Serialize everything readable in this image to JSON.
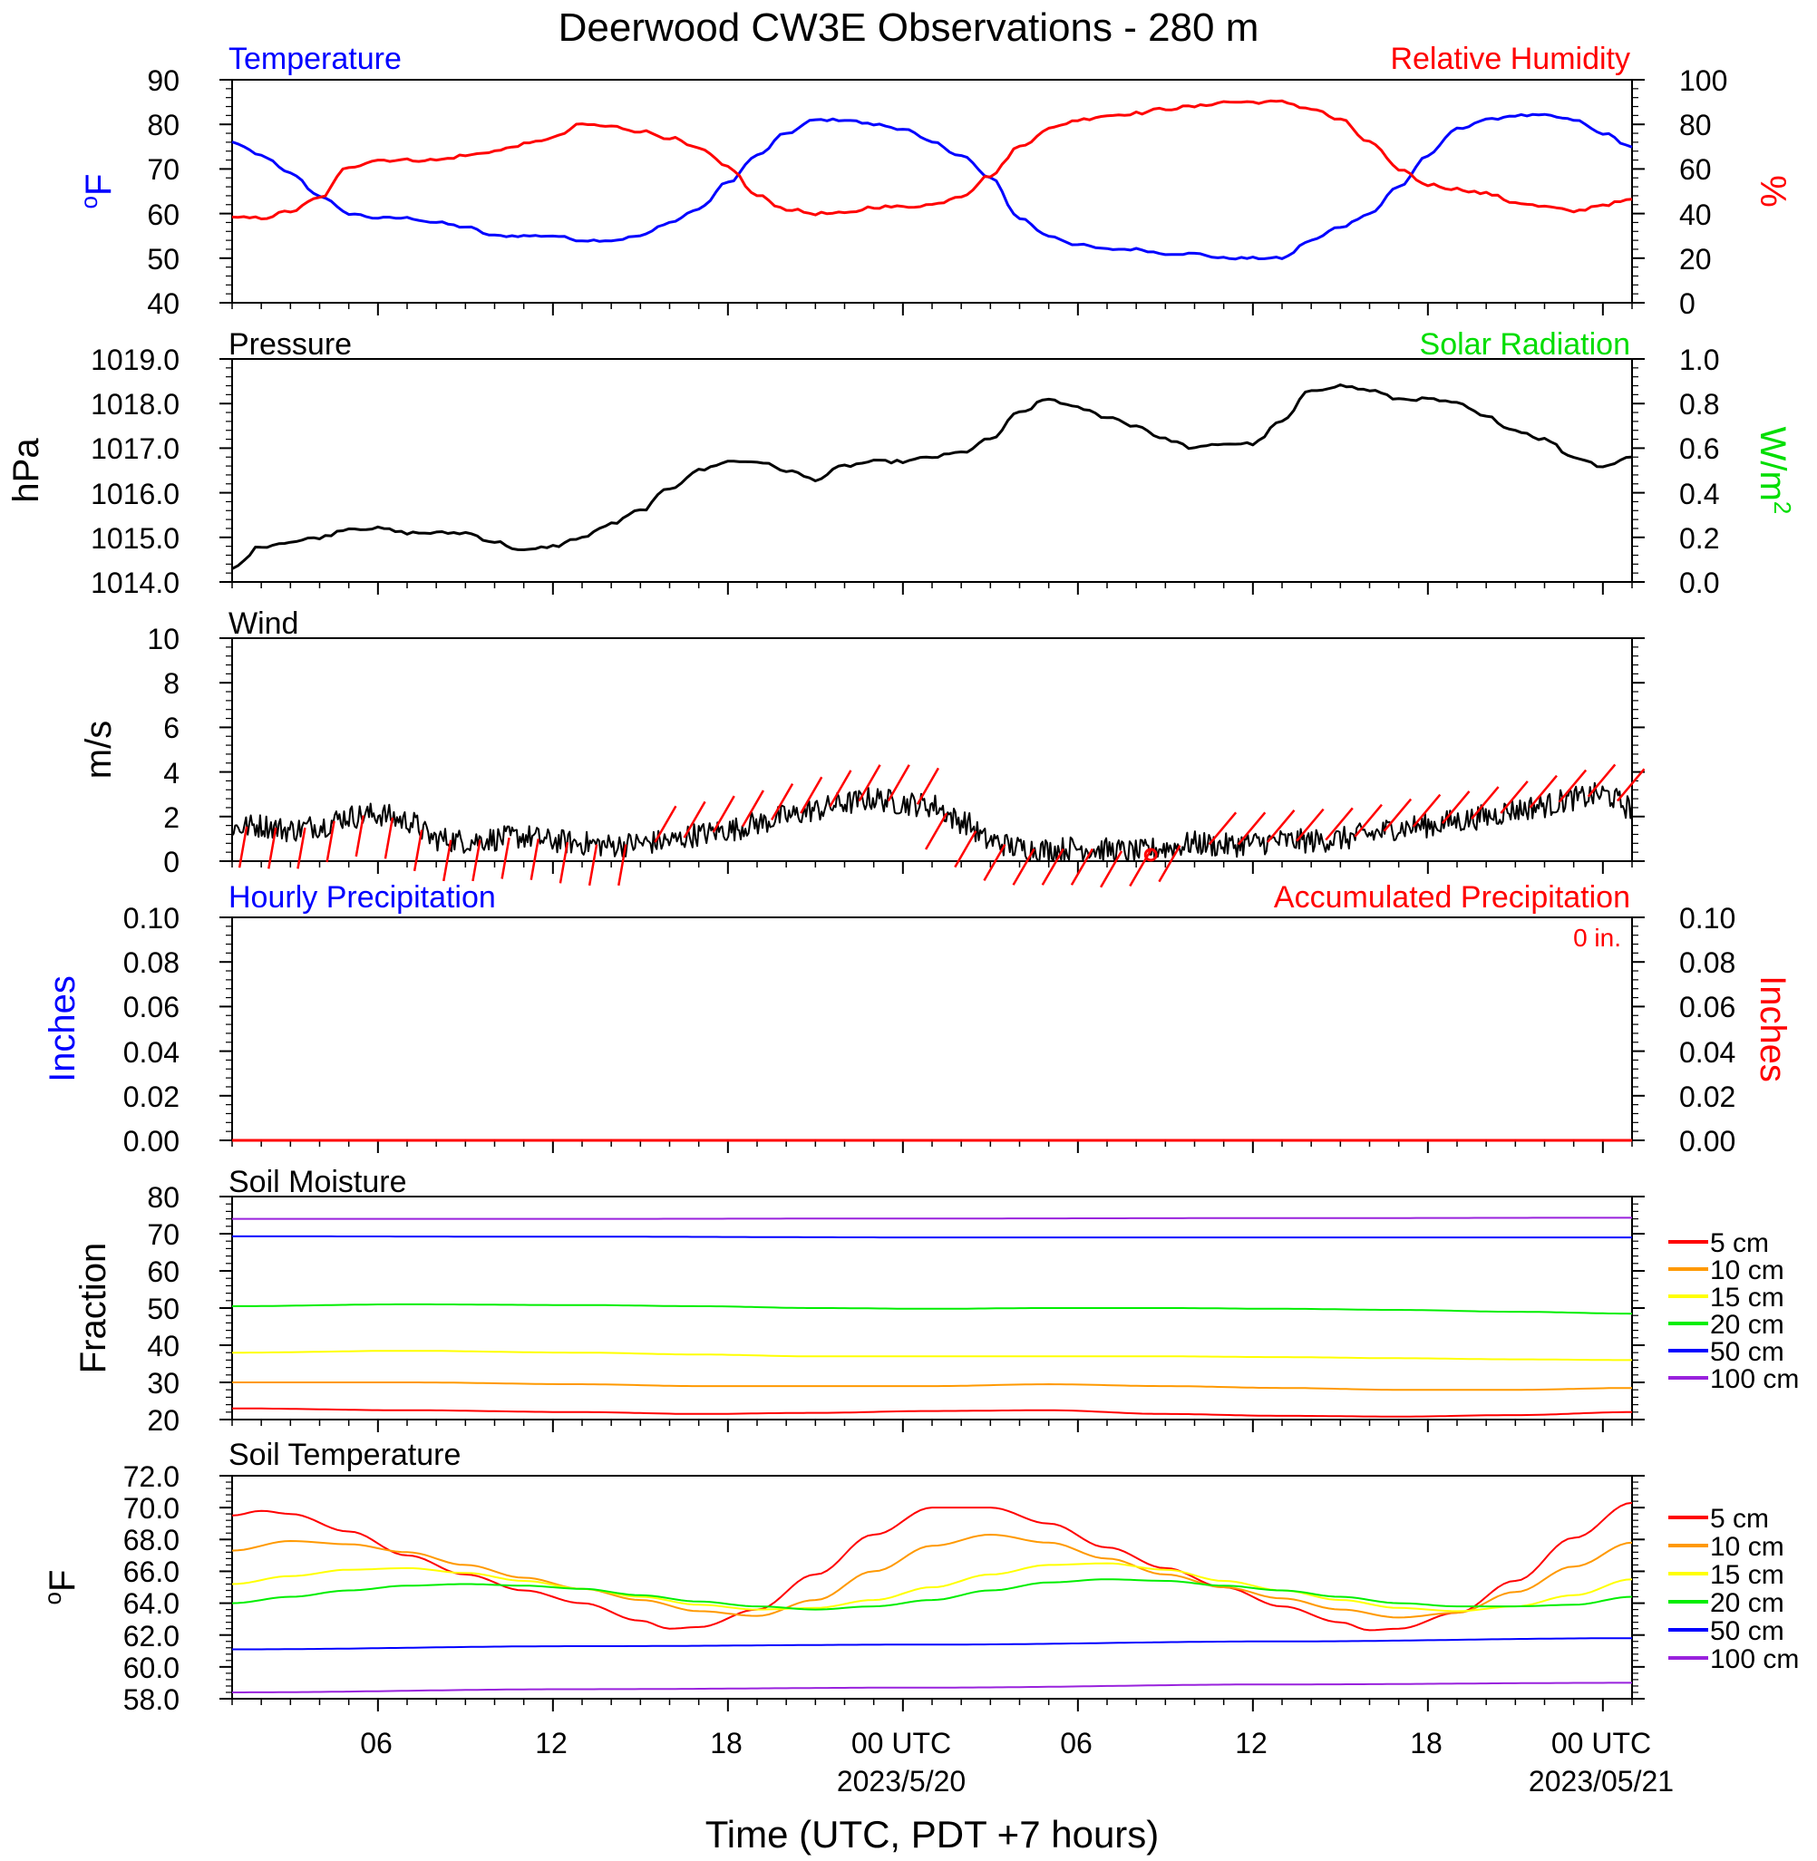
{
  "title": "Deerwood CW3E Observations - 280 m",
  "xaxis": {
    "title": "Time (UTC, PDT +7 hours)",
    "ticks": [
      {
        "h": 5,
        "label": "06",
        "sub": ""
      },
      {
        "h": 11,
        "label": "12",
        "sub": ""
      },
      {
        "h": 17,
        "label": "18",
        "sub": ""
      },
      {
        "h": 23,
        "label": "00 UTC",
        "sub": "2023/5/20"
      },
      {
        "h": 29,
        "label": "06",
        "sub": ""
      },
      {
        "h": 35,
        "label": "12",
        "sub": ""
      },
      {
        "h": 41,
        "label": "18",
        "sub": ""
      },
      {
        "h": 47,
        "label": "00 UTC",
        "sub": "2023/05/21"
      }
    ]
  },
  "colors": {
    "temperature": "#0000ff",
    "humidity": "#ff0000",
    "pressure": "#000000",
    "solar": "#00dd00",
    "wind_line": "#000000",
    "wind_barb": "#ff0000",
    "hourly_precip": "#0000ff",
    "accum_precip": "#ff0000",
    "depth_5": "#ff0000",
    "depth_10": "#ff9900",
    "depth_15": "#ffff00",
    "depth_20": "#00ee00",
    "depth_50": "#0000ff",
    "depth_100": "#9922dd"
  },
  "panels": {
    "temp_rh": {
      "left_title": "Temperature",
      "right_title": "Relative Humidity",
      "left_unit": "oF",
      "right_unit": "%",
      "left_ticks": [
        "40",
        "50",
        "60",
        "70",
        "80",
        "90"
      ],
      "right_ticks": [
        "0",
        "20",
        "40",
        "60",
        "80",
        "100"
      ]
    },
    "pressure": {
      "left_title": "Pressure",
      "right_title": "Solar Radiation",
      "left_unit": "hPa",
      "right_unit": "W/m2",
      "left_ticks": [
        "1014.0",
        "1015.0",
        "1016.0",
        "1017.0",
        "1018.0",
        "1019.0"
      ],
      "right_ticks": [
        "0.0",
        "0.2",
        "0.4",
        "0.6",
        "0.8",
        "1.0"
      ]
    },
    "wind": {
      "left_title": "Wind",
      "left_unit": "m/s",
      "left_ticks": [
        "0",
        "2",
        "4",
        "6",
        "8",
        "10"
      ]
    },
    "precip": {
      "left_title": "Hourly Precipitation",
      "right_title": "Accumulated Precipitation",
      "accum_label": "0 in.",
      "left_unit": "Inches",
      "right_unit": "Inches",
      "left_ticks": [
        "0.00",
        "0.02",
        "0.04",
        "0.06",
        "0.08",
        "0.10"
      ],
      "right_ticks": [
        "0.00",
        "0.02",
        "0.04",
        "0.06",
        "0.08",
        "0.10"
      ]
    },
    "soil_moisture": {
      "left_title": "Soil Moisture",
      "left_unit": "Fraction",
      "left_ticks": [
        "20",
        "30",
        "40",
        "50",
        "60",
        "70",
        "80"
      ],
      "legend": [
        "5 cm",
        "10 cm",
        "15 cm",
        "20 cm",
        "50 cm",
        "100 cm"
      ]
    },
    "soil_temperature": {
      "left_title": "Soil Temperature",
      "left_unit": "oF",
      "left_ticks": [
        "58.0",
        "60.0",
        "62.0",
        "64.0",
        "66.0",
        "68.0",
        "70.0",
        "72.0"
      ],
      "legend": [
        "5 cm",
        "10 cm",
        "15 cm",
        "20 cm",
        "50 cm",
        "100 cm"
      ]
    }
  },
  "chart_data": [
    {
      "type": "line",
      "panel": "temp_rh",
      "xlim_hours": [
        0,
        48
      ],
      "series": [
        {
          "name": "Temperature",
          "axis": "left",
          "ylim": [
            40,
            90
          ],
          "x": [
            0,
            1,
            2,
            3,
            4,
            5,
            6,
            7,
            8,
            9,
            10,
            11,
            12,
            13,
            14,
            15,
            16,
            17,
            18,
            19,
            20,
            21,
            22,
            23,
            24,
            25,
            26,
            27,
            28,
            29,
            30,
            31,
            32,
            33,
            34,
            35,
            36,
            37,
            38,
            39,
            40,
            41,
            42,
            43,
            44,
            45,
            46,
            47,
            48
          ],
          "y": [
            76,
            73,
            69,
            64,
            60,
            59,
            59,
            58,
            57,
            55,
            55,
            55,
            54,
            54,
            55,
            58,
            61,
            67,
            73,
            78,
            81,
            81,
            80,
            79,
            76,
            73,
            68,
            59,
            55,
            53,
            52,
            52,
            51,
            51,
            50,
            50,
            50,
            54,
            57,
            60,
            66,
            73,
            79,
            81,
            82,
            82,
            81,
            78,
            75
          ]
        },
        {
          "name": "Relative Humidity",
          "axis": "right",
          "ylim": [
            0,
            100
          ],
          "x": [
            0,
            1,
            2,
            3,
            4,
            5,
            6,
            7,
            8,
            9,
            10,
            11,
            12,
            13,
            14,
            15,
            16,
            17,
            18,
            19,
            20,
            21,
            22,
            23,
            24,
            25,
            26,
            27,
            28,
            29,
            30,
            31,
            32,
            33,
            34,
            35,
            36,
            37,
            38,
            39,
            40,
            41,
            42,
            43,
            44,
            45,
            46,
            47,
            48
          ],
          "y": [
            38,
            38,
            41,
            47,
            61,
            64,
            64,
            64,
            66,
            68,
            71,
            74,
            80,
            79,
            77,
            74,
            69,
            61,
            48,
            42,
            40,
            40,
            43,
            43,
            44,
            48,
            57,
            70,
            78,
            82,
            84,
            85,
            87,
            88,
            90,
            90,
            90,
            87,
            82,
            72,
            60,
            53,
            51,
            49,
            45,
            43,
            41,
            44,
            46
          ]
        }
      ]
    },
    {
      "type": "line",
      "panel": "pressure",
      "xlim_hours": [
        0,
        48
      ],
      "series": [
        {
          "name": "Pressure",
          "axis": "left",
          "ylim": [
            1014,
            1019
          ],
          "x": [
            0,
            1,
            2,
            3,
            4,
            5,
            6,
            7,
            8,
            9,
            10,
            11,
            12,
            13,
            14,
            15,
            16,
            17,
            18,
            19,
            20,
            21,
            22,
            23,
            24,
            25,
            26,
            27,
            28,
            29,
            30,
            31,
            32,
            33,
            34,
            35,
            36,
            37,
            38,
            39,
            40,
            41,
            42,
            43,
            44,
            45,
            46,
            47,
            48
          ],
          "y": [
            1014.3,
            1014.8,
            1014.9,
            1015.0,
            1015.2,
            1015.2,
            1015.1,
            1015.1,
            1015.1,
            1014.9,
            1014.7,
            1014.8,
            1015.0,
            1015.3,
            1015.6,
            1016.1,
            1016.5,
            1016.7,
            1016.7,
            1016.5,
            1016.3,
            1016.6,
            1016.7,
            1016.7,
            1016.8,
            1016.9,
            1017.2,
            1017.8,
            1018.1,
            1017.9,
            1017.7,
            1017.5,
            1017.2,
            1017.0,
            1017.1,
            1017.1,
            1017.6,
            1018.3,
            1018.4,
            1018.3,
            1018.1,
            1018.1,
            1018.0,
            1017.7,
            1017.4,
            1017.2,
            1016.8,
            1016.6,
            1016.8
          ]
        }
      ]
    },
    {
      "type": "line",
      "panel": "wind",
      "xlim_hours": [
        0,
        48
      ],
      "series": [
        {
          "name": "Wind",
          "axis": "left",
          "ylim": [
            0,
            10
          ],
          "x": [
            0,
            1,
            2,
            3,
            4,
            5,
            6,
            7,
            8,
            9,
            10,
            11,
            12,
            13,
            14,
            15,
            16,
            17,
            18,
            19,
            20,
            21,
            22,
            23,
            24,
            25,
            26,
            27,
            28,
            29,
            30,
            31,
            32,
            33,
            34,
            35,
            36,
            37,
            38,
            39,
            40,
            41,
            42,
            43,
            44,
            45,
            46,
            47,
            48
          ],
          "y": [
            1.5,
            1.6,
            1.4,
            1.6,
            2.0,
            2.1,
            1.8,
            1.0,
            0.9,
            1.0,
            1.1,
            0.9,
            0.8,
            0.7,
            0.8,
            0.9,
            1.2,
            1.4,
            1.7,
            2.0,
            2.3,
            2.6,
            2.8,
            2.6,
            2.5,
            1.8,
            0.9,
            0.6,
            0.5,
            0.6,
            0.5,
            0.4,
            0.6,
            0.8,
            0.7,
            0.8,
            0.9,
            0.9,
            1.0,
            1.2,
            1.5,
            1.6,
            1.8,
            2.0,
            2.3,
            2.5,
            2.8,
            3.0,
            2.4
          ]
        }
      ]
    },
    {
      "type": "line",
      "panel": "precip",
      "xlim_hours": [
        0,
        48
      ],
      "series": [
        {
          "name": "Hourly Precipitation",
          "axis": "left",
          "ylim": [
            0,
            0.1
          ],
          "x": [
            0,
            48
          ],
          "y": [
            0,
            0
          ]
        },
        {
          "name": "Accumulated Precipitation",
          "axis": "right",
          "ylim": [
            0,
            0.1
          ],
          "x": [
            0,
            48
          ],
          "y": [
            0,
            0
          ]
        }
      ]
    },
    {
      "type": "line",
      "panel": "soil_moisture",
      "xlim_hours": [
        0,
        48
      ],
      "ylim": [
        20,
        80
      ],
      "series": [
        {
          "name": "5 cm",
          "x": [
            0,
            6,
            12,
            16,
            20,
            24,
            28,
            32,
            36,
            40,
            44,
            48
          ],
          "y": [
            23,
            22.5,
            22,
            21.5,
            21.8,
            22.3,
            22.5,
            21.5,
            21,
            20.8,
            21.2,
            22
          ]
        },
        {
          "name": "10 cm",
          "x": [
            0,
            6,
            12,
            16,
            20,
            24,
            28,
            32,
            36,
            40,
            44,
            48
          ],
          "y": [
            30,
            30,
            29.5,
            29,
            29,
            29,
            29.5,
            29,
            28.5,
            28,
            28,
            28.5
          ]
        },
        {
          "name": "15 cm",
          "x": [
            0,
            6,
            12,
            16,
            20,
            24,
            28,
            32,
            36,
            40,
            44,
            48
          ],
          "y": [
            38,
            38.5,
            38,
            37.5,
            37,
            37,
            37,
            37,
            36.8,
            36.5,
            36.2,
            36
          ]
        },
        {
          "name": "20 cm",
          "x": [
            0,
            6,
            12,
            16,
            20,
            24,
            28,
            32,
            36,
            40,
            44,
            48
          ],
          "y": [
            50.5,
            51,
            50.8,
            50.5,
            50,
            49.8,
            50,
            50,
            49.8,
            49.5,
            49,
            48.5
          ]
        },
        {
          "name": "50 cm",
          "x": [
            0,
            12,
            24,
            36,
            48
          ],
          "y": [
            69.3,
            69.2,
            69,
            69,
            69
          ]
        },
        {
          "name": "100 cm",
          "x": [
            0,
            12,
            24,
            36,
            48
          ],
          "y": [
            74,
            74,
            74.1,
            74.2,
            74.3
          ]
        }
      ]
    },
    {
      "type": "line",
      "panel": "soil_temperature",
      "xlim_hours": [
        0,
        48
      ],
      "ylim": [
        58,
        72
      ],
      "series": [
        {
          "name": "5 cm",
          "x": [
            0,
            1,
            2,
            4,
            6,
            8,
            10,
            12,
            14,
            15,
            16,
            18,
            20,
            22,
            24,
            26,
            28,
            30,
            32,
            34,
            36,
            38,
            39,
            40,
            42,
            44,
            46,
            48
          ],
          "y": [
            69.5,
            69.8,
            69.6,
            68.5,
            67,
            65.8,
            64.8,
            64,
            62.9,
            62.4,
            62.5,
            63.6,
            65.8,
            68.3,
            70,
            70,
            69,
            67.5,
            66.2,
            65,
            63.8,
            62.8,
            62.3,
            62.4,
            63.4,
            65.4,
            68.1,
            70.3
          ]
        },
        {
          "name": "10 cm",
          "x": [
            0,
            2,
            4,
            6,
            8,
            10,
            12,
            14,
            16,
            18,
            20,
            22,
            24,
            26,
            28,
            30,
            32,
            34,
            36,
            38,
            40,
            42,
            44,
            46,
            48
          ],
          "y": [
            67.3,
            67.9,
            67.7,
            67.2,
            66.4,
            65.6,
            64.9,
            64.2,
            63.5,
            63.2,
            64.2,
            66,
            67.6,
            68.3,
            67.8,
            66.8,
            65.8,
            65,
            64.3,
            63.6,
            63.1,
            63.4,
            64.7,
            66.3,
            67.8
          ]
        },
        {
          "name": "15 cm",
          "x": [
            0,
            2,
            4,
            6,
            8,
            10,
            12,
            14,
            16,
            18,
            20,
            22,
            24,
            26,
            28,
            30,
            32,
            34,
            36,
            38,
            40,
            42,
            44,
            46,
            48
          ],
          "y": [
            65.2,
            65.7,
            66.1,
            66.2,
            65.9,
            65.4,
            64.9,
            64.4,
            63.9,
            63.6,
            63.7,
            64.2,
            65,
            65.8,
            66.4,
            66.5,
            66.1,
            65.4,
            64.8,
            64.2,
            63.7,
            63.5,
            63.8,
            64.5,
            65.5
          ]
        },
        {
          "name": "20 cm",
          "x": [
            0,
            2,
            4,
            6,
            8,
            10,
            12,
            14,
            16,
            18,
            20,
            22,
            24,
            26,
            28,
            30,
            32,
            34,
            36,
            38,
            40,
            42,
            44,
            46,
            48
          ],
          "y": [
            64,
            64.4,
            64.8,
            65.1,
            65.2,
            65.1,
            64.9,
            64.5,
            64.1,
            63.8,
            63.6,
            63.8,
            64.2,
            64.8,
            65.3,
            65.5,
            65.4,
            65.1,
            64.8,
            64.4,
            64,
            63.8,
            63.8,
            63.9,
            64.4
          ]
        },
        {
          "name": "50 cm",
          "x": [
            0,
            12,
            24,
            36,
            48
          ],
          "y": [
            61.1,
            61.3,
            61.4,
            61.6,
            61.8
          ]
        },
        {
          "name": "100 cm",
          "x": [
            0,
            12,
            24,
            36,
            48
          ],
          "y": [
            58.4,
            58.6,
            58.7,
            58.9,
            59
          ]
        }
      ]
    }
  ]
}
